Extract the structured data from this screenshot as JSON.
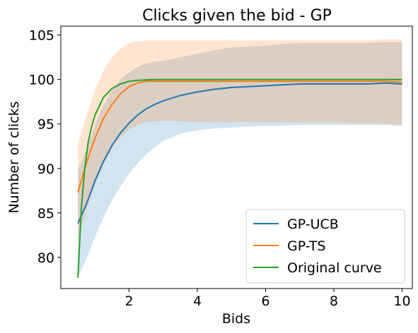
{
  "chart_data": {
    "type": "line",
    "title": "Clicks given the bid - GP",
    "xlabel": "Bids",
    "ylabel": "Number of clicks",
    "xlim": [
      0.0,
      10.3
    ],
    "ylim": [
      76.5,
      106.0
    ],
    "xticks": [
      2,
      4,
      6,
      8,
      10
    ],
    "yticks": [
      80,
      85,
      90,
      95,
      100,
      105
    ],
    "grid": false,
    "legend_position": "lower-right",
    "series": [
      {
        "name": "GP-UCB",
        "color": "#1f77b4",
        "x": [
          0.5,
          0.75,
          1.0,
          1.25,
          1.5,
          1.75,
          2.0,
          2.25,
          2.5,
          2.75,
          3.0,
          3.5,
          4.0,
          4.5,
          5.0,
          5.5,
          6.0,
          6.5,
          7.0,
          7.5,
          8.0,
          8.5,
          9.0,
          9.5,
          10.0
        ],
        "values": [
          83.8,
          86.0,
          88.6,
          90.8,
          92.6,
          94.0,
          95.1,
          96.0,
          96.7,
          97.2,
          97.6,
          98.2,
          98.6,
          98.9,
          99.1,
          99.2,
          99.3,
          99.4,
          99.5,
          99.5,
          99.5,
          99.5,
          99.5,
          99.6,
          99.5
        ],
        "lower": [
          77.8,
          79.8,
          82.3,
          84.5,
          86.4,
          88.0,
          89.4,
          90.6,
          91.6,
          92.4,
          93.1,
          93.9,
          94.3,
          94.5,
          94.6,
          94.7,
          94.8,
          94.8,
          94.9,
          94.9,
          94.9,
          94.9,
          94.9,
          94.9,
          94.8
        ],
        "upper": [
          89.8,
          92.1,
          94.9,
          97.1,
          98.8,
          100.0,
          100.8,
          101.4,
          101.8,
          102.0,
          102.1,
          102.5,
          102.9,
          103.3,
          103.6,
          103.7,
          103.8,
          104.0,
          104.1,
          104.1,
          104.1,
          104.1,
          104.1,
          104.2,
          104.2
        ]
      },
      {
        "name": "GP-TS",
        "color": "#ff7f0e",
        "x": [
          0.5,
          0.75,
          1.0,
          1.25,
          1.5,
          1.75,
          2.0,
          2.25,
          2.5,
          2.75,
          3.0,
          3.5,
          4.0,
          4.5,
          5.0,
          5.5,
          6.0,
          6.5,
          7.0,
          7.5,
          8.0,
          8.5,
          9.0,
          9.5,
          10.0
        ],
        "values": [
          87.3,
          90.6,
          93.4,
          95.6,
          97.2,
          98.4,
          99.2,
          99.6,
          99.8,
          99.8,
          99.8,
          99.8,
          99.8,
          99.8,
          99.8,
          99.8,
          99.8,
          99.8,
          99.8,
          99.8,
          99.8,
          99.8,
          99.8,
          99.8,
          99.7
        ],
        "lower": [
          82.0,
          85.3,
          88.2,
          90.5,
          92.2,
          93.5,
          94.4,
          94.9,
          95.2,
          95.3,
          95.3,
          95.3,
          95.2,
          95.2,
          95.2,
          95.2,
          95.2,
          95.2,
          95.2,
          95.2,
          95.2,
          95.1,
          95.1,
          95.0,
          94.9
        ],
        "upper": [
          92.7,
          96.0,
          98.8,
          101.0,
          102.5,
          103.5,
          104.1,
          104.3,
          104.4,
          104.4,
          104.4,
          104.4,
          104.4,
          104.4,
          104.4,
          104.4,
          104.4,
          104.4,
          104.4,
          104.4,
          104.4,
          104.4,
          104.4,
          104.5,
          104.5
        ]
      },
      {
        "name": "Original curve",
        "color": "#2ca02c",
        "x": [
          0.5,
          0.6,
          0.7,
          0.8,
          0.9,
          1.0,
          1.25,
          1.5,
          1.75,
          2.0,
          2.25,
          2.5,
          2.75,
          3.0,
          3.5,
          4.0,
          5.0,
          6.0,
          7.0,
          8.0,
          9.0,
          10.0
        ],
        "values": [
          77.7,
          85.5,
          90.0,
          92.9,
          94.7,
          96.0,
          98.0,
          99.0,
          99.5,
          99.8,
          99.9,
          99.95,
          100.0,
          100.0,
          100.0,
          100.0,
          100.0,
          100.0,
          100.0,
          100.0,
          100.0,
          100.0
        ]
      }
    ]
  }
}
